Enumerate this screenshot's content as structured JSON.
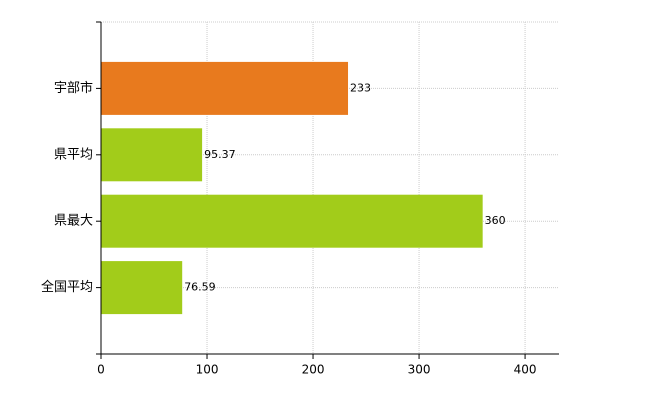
{
  "chart_data": {
    "type": "barh",
    "categories": [
      "宇部市",
      "県平均",
      "県最大",
      "全国平均"
    ],
    "values": [
      233,
      95.37,
      360,
      76.59
    ],
    "colors": [
      "#e87a1e",
      "#a2cc1a",
      "#a2cc1a",
      "#a2cc1a"
    ],
    "xlim": [
      0,
      432
    ],
    "xticks": [
      0,
      100,
      200,
      300,
      400
    ],
    "grid": true
  }
}
